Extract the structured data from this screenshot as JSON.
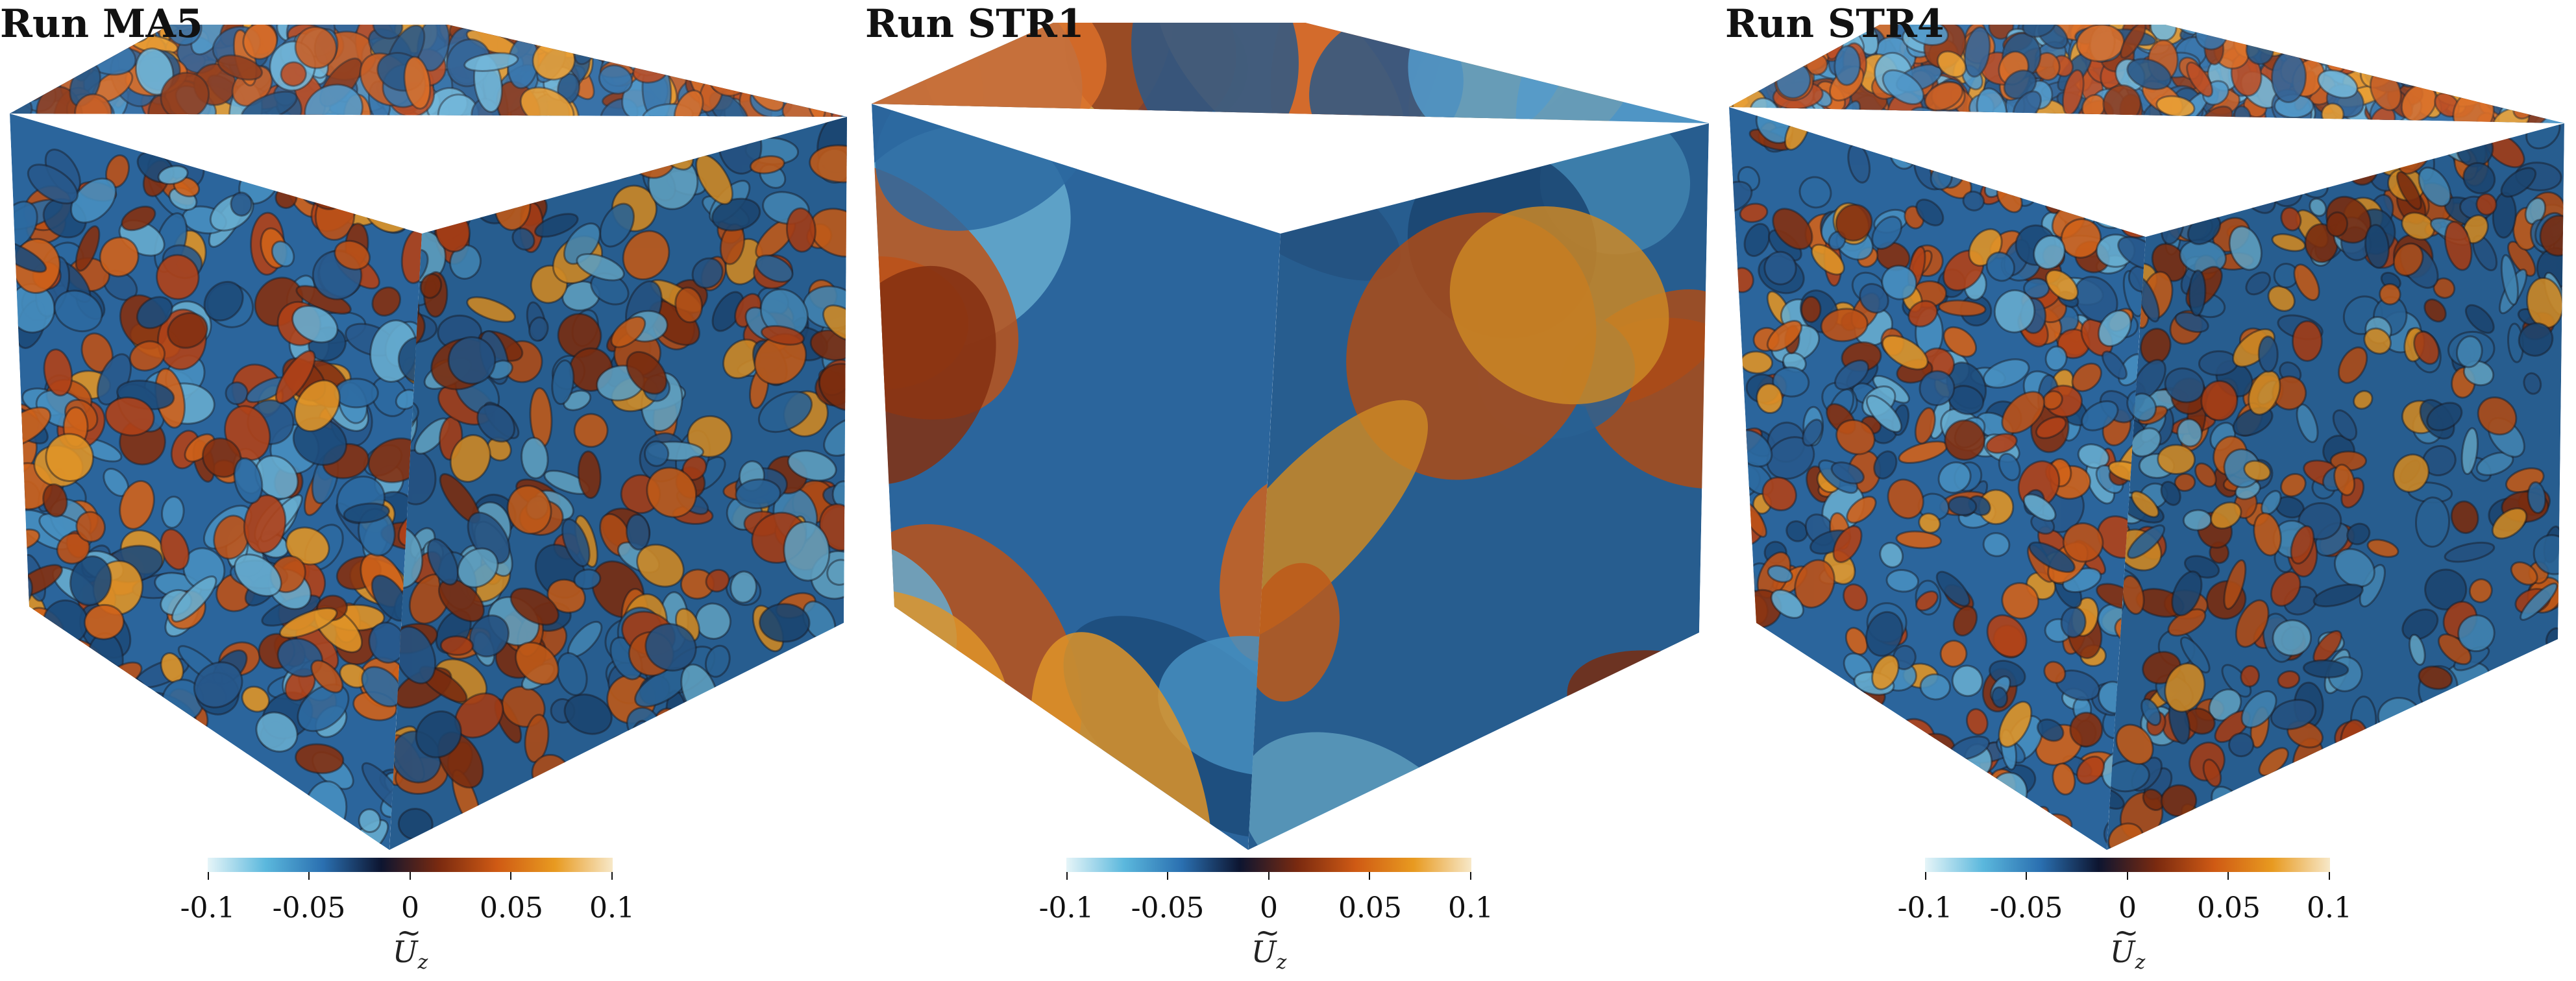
{
  "panels": [
    {
      "title": "Run MA5",
      "pattern": "fine"
    },
    {
      "title": "Run STR1",
      "pattern": "coarse"
    },
    {
      "title": "Run STR4",
      "pattern": "fine-dense"
    }
  ],
  "colorbar": {
    "ticks": [
      "-0.1",
      "-0.05",
      "0",
      "0.05",
      "0.1"
    ],
    "title_symbol": "U",
    "title_tilde": "~",
    "title_subscript": "z",
    "colors": [
      "#e6f5f8",
      "#5bb8dd",
      "#2a6fb0",
      "#0d1530",
      "#7a2a10",
      "#cf5a14",
      "#e89a20",
      "#f7e8c8"
    ]
  }
}
